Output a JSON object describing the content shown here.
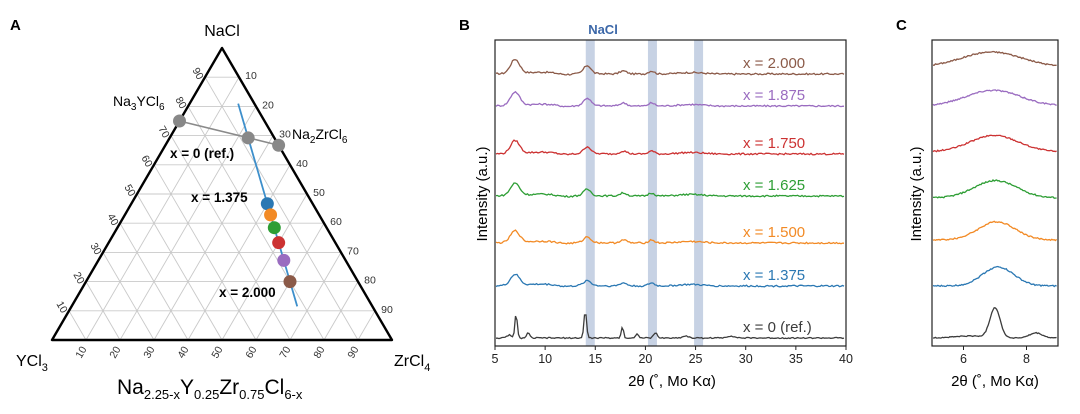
{
  "colors": {
    "ref": "#3c3c3c",
    "x1375": "#2b78b3",
    "x1500": "#f28a25",
    "x1625": "#2e9e35",
    "x1750": "#cc3232",
    "x1875": "#9a6cc0",
    "x2000": "#8b5a48",
    "nacl_band": "#c7d2e4",
    "nacl_text": "#3b67a8",
    "line_blue": "#3d8fcb",
    "grey_point": "#888888"
  },
  "chart_data": [
    {
      "panel": "A",
      "type": "scatter",
      "subtype": "ternary",
      "vertices": {
        "top": "NaCl",
        "left": "YCl3",
        "right": "ZrCl4"
      },
      "vertex_labels": {
        "top": [
          "NaCl"
        ],
        "left": [
          "YCl",
          "3"
        ],
        "right": [
          "ZrCl",
          "4"
        ]
      },
      "formula": [
        "Na",
        "2.25-x",
        "Y",
        "0.25",
        "Zr",
        "0.75",
        "Cl",
        "6-x"
      ],
      "ticks": [
        "10",
        "20",
        "30",
        "40",
        "50",
        "60",
        "70",
        "80",
        "90"
      ],
      "reference_points": [
        {
          "label": [
            "Na",
            "3",
            "YCl",
            "6"
          ],
          "NaCl": 75,
          "YCl3": 25,
          "ZrCl4": 0
        },
        {
          "label": [
            "Na",
            "2",
            "ZrCl",
            "6"
          ],
          "NaCl": 66.7,
          "YCl3": 0,
          "ZrCl4": 33.3
        },
        {
          "label": [
            "x = 0 (ref.)"
          ],
          "NaCl": 69.2,
          "YCl3": 7.7,
          "ZrCl4": 23.1
        }
      ],
      "points": [
        {
          "x": 1.375,
          "series": "x1375"
        },
        {
          "x": 1.5,
          "series": "x1500"
        },
        {
          "x": 1.625,
          "series": "x1625"
        },
        {
          "x": 1.75,
          "series": "x1750"
        },
        {
          "x": 1.875,
          "series": "x1875"
        },
        {
          "x": 2.0,
          "series": "x2000"
        }
      ],
      "point_labels": [
        "x = 1.375",
        "x = 2.000"
      ]
    },
    {
      "panel": "B",
      "type": "line",
      "xlabel": "2θ (˚, Mo Kα)",
      "ylabel": "Intensity (a.u.)",
      "xlim": [
        5,
        40
      ],
      "xticks": [
        5,
        10,
        15,
        20,
        25,
        30,
        35,
        40
      ],
      "highlight_label": "NaCl",
      "highlight_bands": [
        14.5,
        20.7,
        25.3
      ],
      "series": [
        {
          "name": "x = 2.000",
          "key": "x2000"
        },
        {
          "name": "x = 1.875",
          "key": "x1875"
        },
        {
          "name": "x = 1.750",
          "key": "x1750"
        },
        {
          "name": "x = 1.625",
          "key": "x1625"
        },
        {
          "name": "x = 1.500",
          "key": "x1500"
        },
        {
          "name": "x = 1.375",
          "key": "x1375"
        },
        {
          "name": "x = 0 (ref.)",
          "key": "ref"
        }
      ]
    },
    {
      "panel": "C",
      "type": "line",
      "xlabel": "2θ (˚, Mo Kα)",
      "ylabel": "Intensity (a.u.)",
      "xlim": [
        5,
        9
      ],
      "xticks": [
        6,
        8
      ],
      "series_keys": [
        "x2000",
        "x1875",
        "x1750",
        "x1625",
        "x1500",
        "x1375",
        "ref"
      ]
    }
  ],
  "panel_letters": [
    "A",
    "B",
    "C"
  ]
}
